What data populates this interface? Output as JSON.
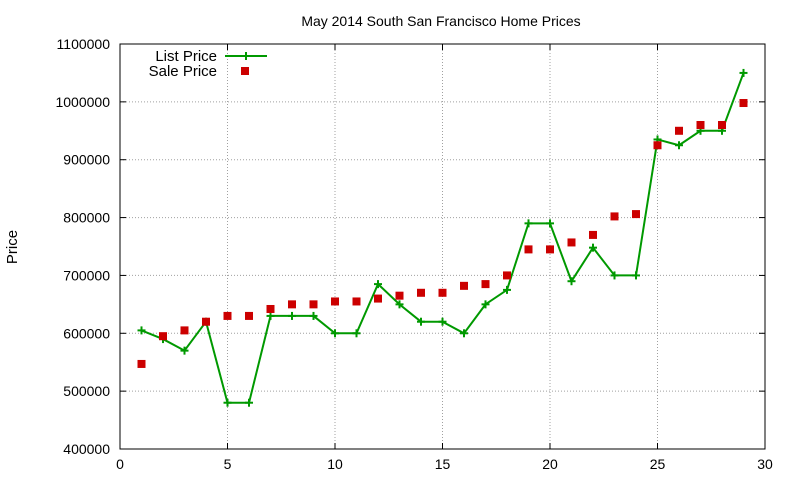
{
  "chart_data": {
    "type": "line",
    "title": "May 2014 South San Francisco Home Prices",
    "xlabel": "",
    "ylabel": "Price",
    "xlim": [
      0,
      30
    ],
    "ylim": [
      400000,
      1100000
    ],
    "x_ticks": [
      0,
      5,
      10,
      15,
      20,
      25,
      30
    ],
    "y_ticks": [
      400000,
      500000,
      600000,
      700000,
      800000,
      900000,
      1000000,
      1100000
    ],
    "grid": true,
    "legend_position": "top-left",
    "series": [
      {
        "name": "List Price",
        "style": "linespoints",
        "color": "#009900",
        "x": [
          1,
          2,
          3,
          4,
          5,
          6,
          7,
          8,
          9,
          10,
          11,
          12,
          13,
          14,
          15,
          16,
          17,
          18,
          19,
          20,
          21,
          22,
          23,
          24,
          25,
          26,
          27,
          28,
          29
        ],
        "values": [
          605000,
          590000,
          570000,
          620000,
          480000,
          480000,
          630000,
          630000,
          630000,
          600000,
          600000,
          685000,
          650000,
          620000,
          620000,
          600000,
          650000,
          675000,
          790000,
          790000,
          690000,
          748000,
          700000,
          700000,
          935000,
          925000,
          950000,
          950000,
          1050000
        ]
      },
      {
        "name": "Sale Price",
        "style": "points",
        "color": "#cc0000",
        "x": [
          1,
          2,
          3,
          4,
          5,
          6,
          7,
          8,
          9,
          10,
          11,
          12,
          13,
          14,
          15,
          16,
          17,
          18,
          19,
          20,
          21,
          22,
          23,
          24,
          25,
          26,
          27,
          28,
          29
        ],
        "values": [
          547000,
          595000,
          605000,
          620000,
          630000,
          630000,
          642000,
          650000,
          650000,
          655000,
          655000,
          660000,
          665000,
          670000,
          670000,
          682000,
          685000,
          700000,
          745000,
          745000,
          757000,
          770000,
          802000,
          806000,
          925000,
          950000,
          960000,
          960000,
          998000
        ]
      }
    ]
  }
}
